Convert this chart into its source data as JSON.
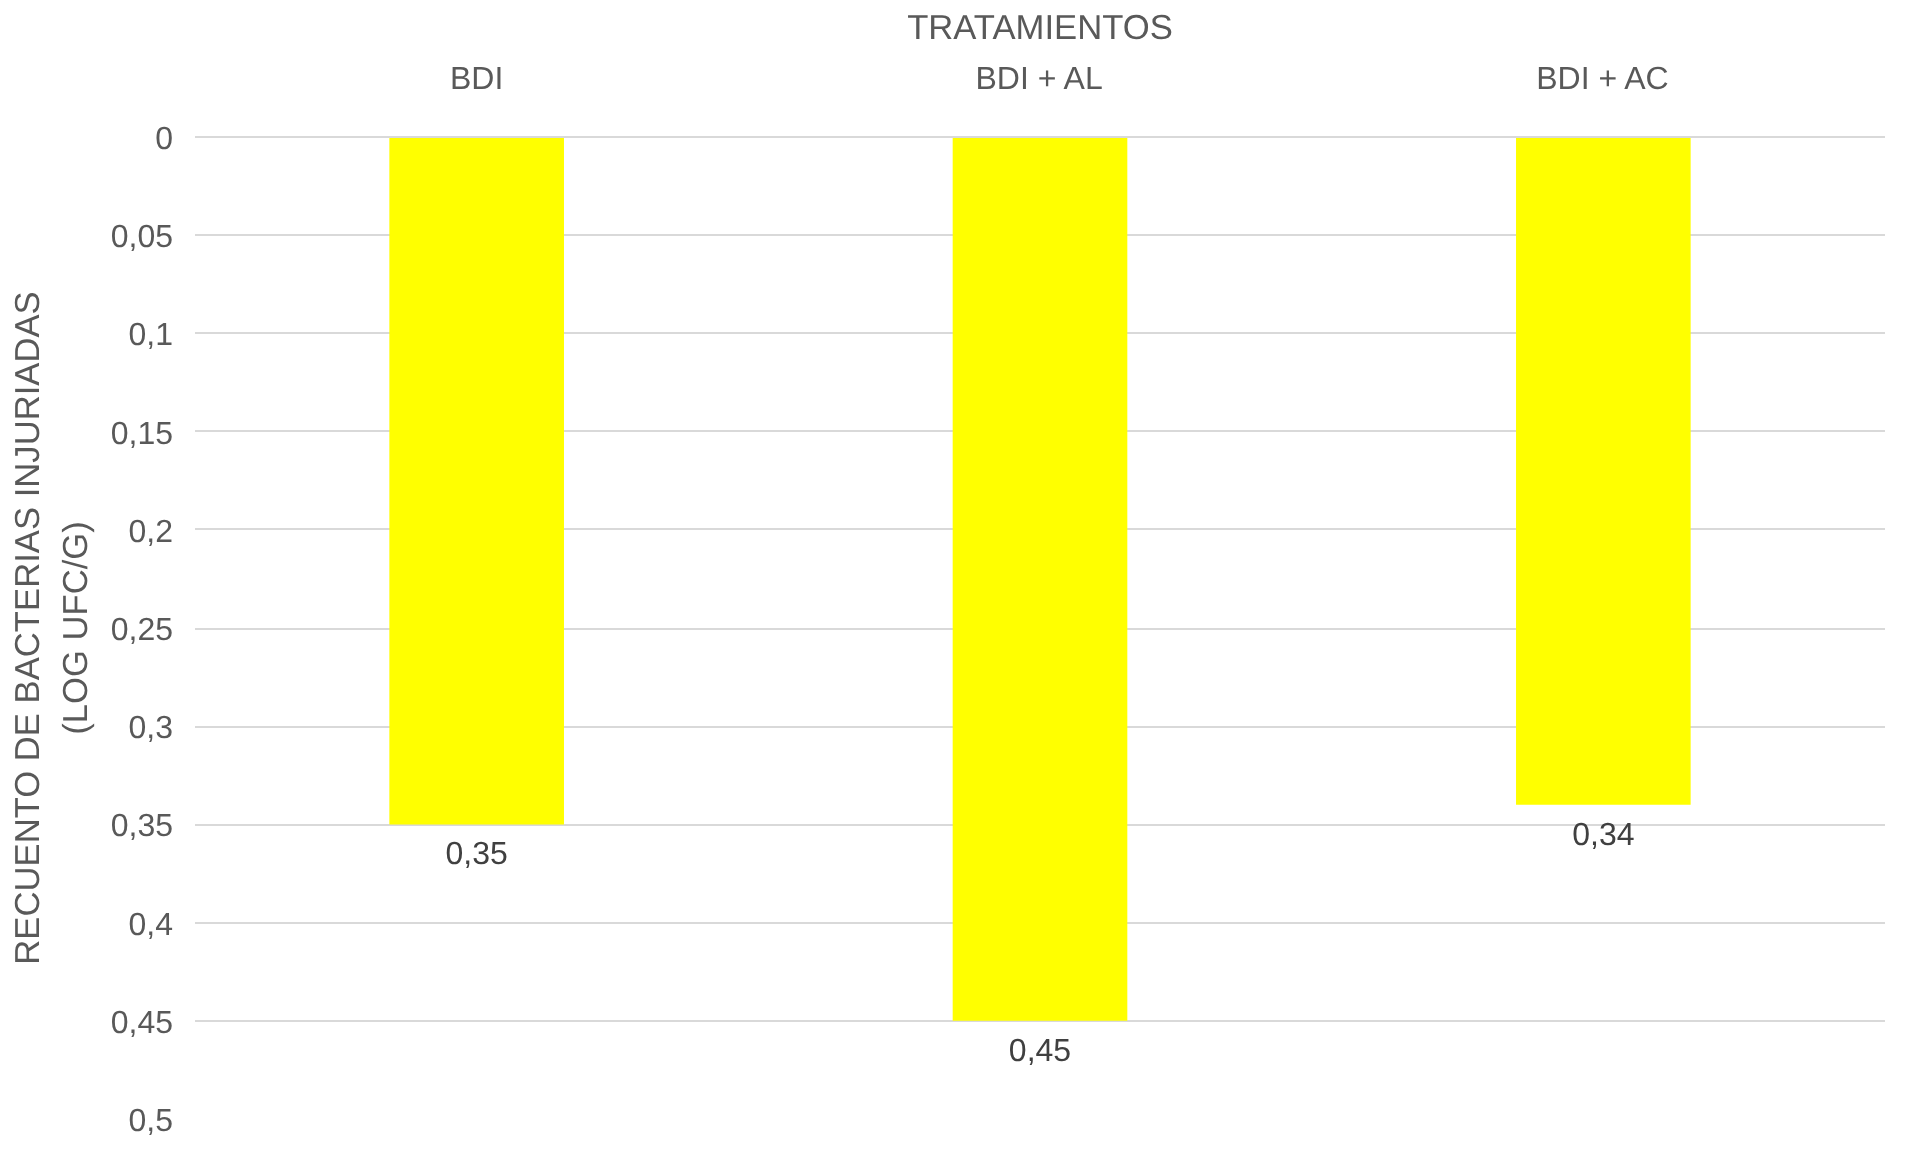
{
  "chart_data": {
    "type": "bar",
    "xlabel": "TRATAMIENTOS",
    "ylabel": "RECUENTO DE BACTERIAS INJURIADAS\n(LOG UFC/G)",
    "categories": [
      "BDI",
      "BDI + AL",
      "BDI + AC"
    ],
    "values": [
      0.35,
      0.45,
      0.34
    ],
    "value_labels": [
      "0,35",
      "0,45",
      "0,34"
    ],
    "color": "#ffff00",
    "ylim": [
      0.5,
      0
    ],
    "yticks": [
      0,
      {
        "value": 0.05,
        "label": "0,05"
      },
      {
        "value": 0.1,
        "label": "0,1"
      },
      {
        "value": 0.15,
        "label": "0,15"
      },
      {
        "value": 0.2,
        "label": "0,2"
      },
      {
        "value": 0.25,
        "label": "0,25"
      },
      {
        "value": 0.3,
        "label": "0,3"
      },
      {
        "value": 0.35,
        "label": "0,35"
      },
      {
        "value": 0.4,
        "label": "0,4"
      },
      {
        "value": 0.45,
        "label": "0,45"
      },
      {
        "value": 0.5,
        "label": "0,5"
      }
    ],
    "grid": "y"
  }
}
